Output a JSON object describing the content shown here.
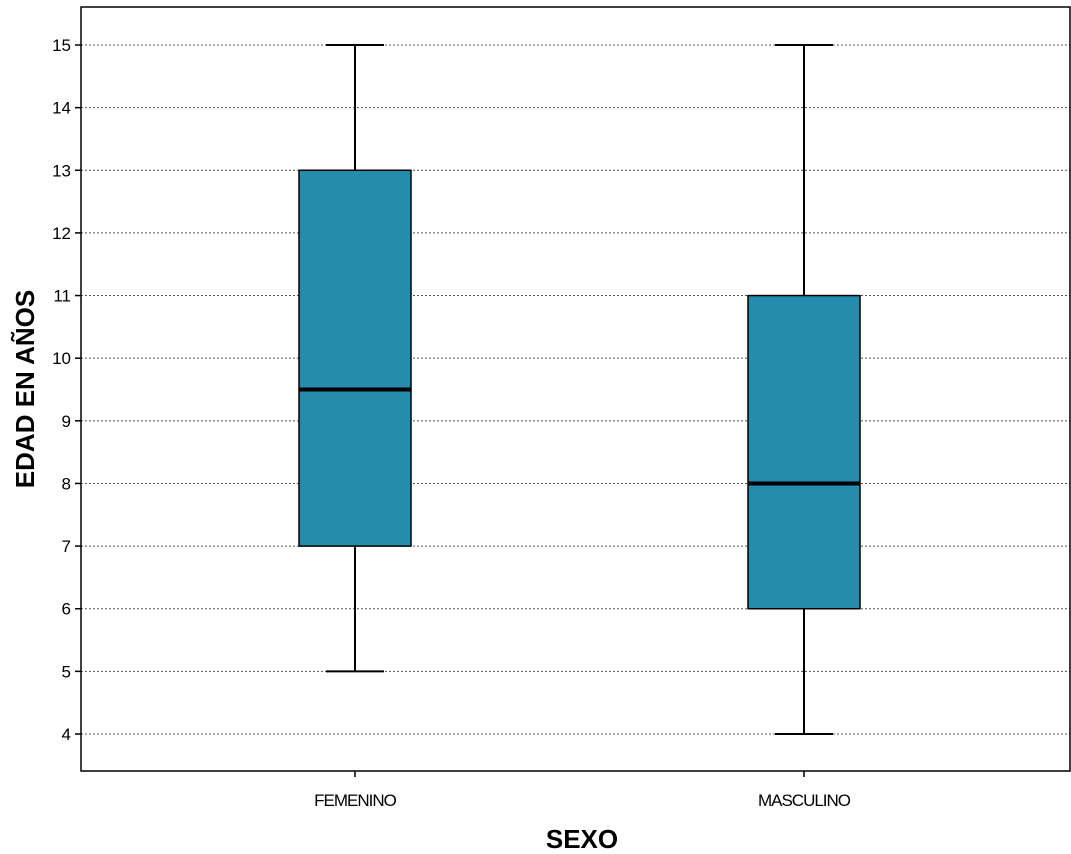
{
  "chart_data": {
    "type": "boxplot",
    "xlabel": "SEXO",
    "ylabel": "EDAD EN AÑOS",
    "ylim": [
      3.4,
      15.6
    ],
    "yticks": [
      "4",
      "5",
      "6",
      "7",
      "8",
      "9",
      "10",
      "11",
      "12",
      "13",
      "14",
      "15"
    ],
    "grid": "horizontal-dotted",
    "box_color": "#258cae",
    "categories": [
      "FEMENINO",
      "MASCULINO"
    ],
    "boxes": [
      {
        "category": "FEMENINO",
        "min": 5,
        "q1": 7,
        "median": 9.5,
        "q3": 13,
        "max": 15
      },
      {
        "category": "MASCULINO",
        "min": 4,
        "q1": 6,
        "median": 8,
        "q3": 11,
        "max": 15
      }
    ]
  }
}
